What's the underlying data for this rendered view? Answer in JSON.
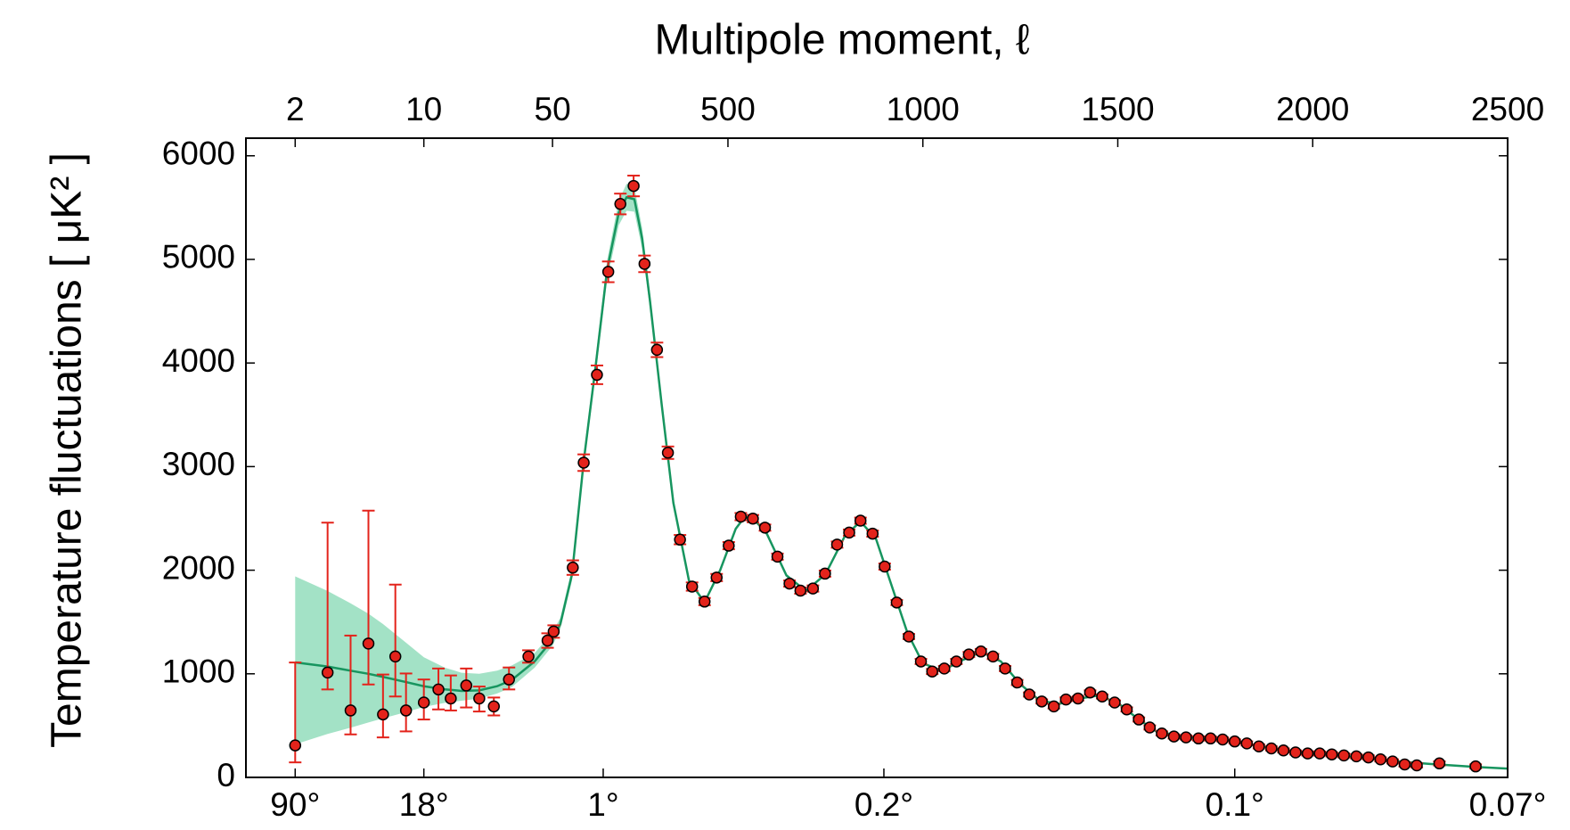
{
  "chart_data": {
    "type": "scatter",
    "x2label": "Multipole moment, ℓ",
    "ylabel": "Temperature fluctuations [ μK² ]",
    "xscale": "log-linear",
    "xsplit": 50,
    "xlim": [
      1.08,
      2500
    ],
    "ylim": [
      0,
      6170
    ],
    "yticks": [
      0,
      1000,
      2000,
      3000,
      4000,
      5000,
      6000
    ],
    "x2ticks": [
      2,
      10,
      50,
      500,
      1000,
      1500,
      2000,
      2500
    ],
    "xticks": [
      {
        "value": 2,
        "label": "90°"
      },
      {
        "value": 10,
        "label": "18°"
      },
      {
        "value": 180,
        "label": "1°"
      },
      {
        "value": 900,
        "label": "0.2°"
      },
      {
        "value": 1800,
        "label": "0.1°"
      },
      {
        "value": 2500,
        "label": "0.07°"
      }
    ],
    "points": {
      "color": "#e3231b",
      "x": [
        2,
        3,
        4,
        5,
        6,
        7,
        8,
        10,
        12,
        14,
        17,
        20,
        24,
        29,
        37,
        47,
        53,
        102,
        130,
        164,
        193,
        224,
        258,
        286,
        318,
        346,
        377,
        408,
        440,
        471,
        502,
        533,
        564,
        595,
        627,
        658,
        686,
        718,
        749,
        780,
        811,
        840,
        871,
        902,
        933,
        964,
        995,
        1024,
        1055,
        1086,
        1118,
        1149,
        1180,
        1211,
        1242,
        1273,
        1305,
        1336,
        1367,
        1398,
        1429,
        1460,
        1492,
        1523,
        1554,
        1582,
        1613,
        1644,
        1675,
        1707,
        1738,
        1769,
        1800,
        1831,
        1862,
        1894,
        1925,
        1956,
        1987,
        2018,
        2049,
        2080,
        2112,
        2143,
        2174,
        2205,
        2236,
        2267,
        2325,
        2418
      ],
      "values": [
        309,
        1012,
        646,
        1292,
        608,
        1167,
        646,
        723,
        849,
        762,
        887,
        762,
        685,
        945,
        1167,
        1321,
        1408,
        2025,
        3038,
        3886,
        4880,
        5535,
        5709,
        4957,
        4127,
        3134,
        2295,
        1842,
        1697,
        1929,
        2237,
        2517,
        2498,
        2411,
        2131,
        1871,
        1803,
        1823,
        1967,
        2247,
        2363,
        2478,
        2353,
        2035,
        1688,
        1360,
        1119,
        1022,
        1051,
        1119,
        1186,
        1215,
        1167,
        1051,
        916,
        800,
        733,
        685,
        752,
        762,
        820,
        781,
        723,
        656,
        559,
        482,
        424,
        395,
        386,
        376,
        376,
        366,
        347,
        328,
        299,
        280,
        260,
        241,
        231,
        231,
        222,
        212,
        203,
        193,
        174,
        154,
        125,
        116,
        135,
        106
      ],
      "err_minus": [
        164,
        163,
        231,
        395,
        222,
        386,
        202,
        164,
        193,
        116,
        212,
        126,
        87,
        96,
        60,
        70,
        60,
        70,
        80,
        90,
        100,
        100,
        100,
        80,
        70,
        60,
        45,
        40,
        35,
        35,
        35,
        35,
        35,
        30,
        30,
        30,
        30,
        30,
        30,
        30,
        30,
        30,
        30,
        30,
        25,
        25,
        25,
        25,
        25,
        25,
        25,
        25,
        25,
        25,
        25,
        20,
        20,
        20,
        20,
        20,
        20,
        20,
        20,
        20,
        20,
        20,
        20,
        20,
        20,
        20,
        20,
        20,
        20,
        20,
        20,
        20,
        20,
        20,
        20,
        20,
        20,
        20,
        20,
        20,
        20,
        20,
        20,
        20,
        20,
        20
      ],
      "err_plus": [
        800,
        1447,
        723,
        1283,
        385,
        694,
        357,
        222,
        202,
        222,
        164,
        115,
        86,
        116,
        60,
        70,
        60,
        70,
        80,
        90,
        100,
        100,
        100,
        80,
        70,
        60,
        45,
        40,
        35,
        35,
        35,
        35,
        35,
        30,
        30,
        30,
        30,
        30,
        30,
        30,
        30,
        30,
        30,
        30,
        25,
        25,
        25,
        25,
        25,
        25,
        25,
        25,
        25,
        25,
        25,
        20,
        20,
        20,
        20,
        20,
        20,
        20,
        20,
        20,
        20,
        20,
        20,
        20,
        20,
        20,
        20,
        20,
        20,
        20,
        20,
        20,
        20,
        20,
        20,
        20,
        20,
        20,
        20,
        20,
        20,
        20,
        20,
        20,
        20,
        20
      ]
    },
    "model": {
      "color": "#17955f",
      "x": [
        2,
        3,
        4,
        5,
        6,
        8,
        10,
        13,
        16,
        20,
        25,
        30,
        40,
        50,
        70,
        100,
        130,
        160,
        190,
        220,
        240,
        260,
        280,
        300,
        330,
        360,
        400,
        440,
        480,
        520,
        540,
        560,
        600,
        650,
        700,
        750,
        800,
        840,
        880,
        920,
        960,
        1000,
        1050,
        1100,
        1150,
        1200,
        1250,
        1300,
        1350,
        1400,
        1450,
        1500,
        1550,
        1600,
        1700,
        1800,
        1900,
        2000,
        2100,
        2200,
        2300,
        2400,
        2500
      ],
      "values": [
        1110,
        1070,
        1030,
        1000,
        970,
        920,
        880,
        850,
        835,
        840,
        880,
        940,
        1120,
        1330,
        1480,
        1960,
        3050,
        3950,
        4900,
        5450,
        5600,
        5580,
        5200,
        4600,
        3600,
        2650,
        1900,
        1690,
        2000,
        2400,
        2500,
        2520,
        2350,
        1950,
        1800,
        1960,
        2330,
        2470,
        2300,
        1850,
        1400,
        1100,
        1030,
        1130,
        1210,
        1120,
        900,
        740,
        710,
        760,
        790,
        720,
        570,
        440,
        380,
        345,
        280,
        230,
        200,
        160,
        130,
        105,
        85
      ]
    },
    "band": {
      "color": "#a3e2c6",
      "x": [
        2,
        3,
        4,
        5,
        6,
        8,
        10,
        13,
        16,
        20,
        25,
        30,
        40,
        50,
        70,
        100,
        130,
        160,
        190,
        220,
        240,
        260,
        280,
        300,
        330,
        360,
        400
      ],
      "lower": [
        320,
        420,
        480,
        530,
        570,
        630,
        680,
        720,
        740,
        760,
        810,
        870,
        1060,
        1270,
        1430,
        1900,
        2980,
        3870,
        4800,
        5330,
        5470,
        5460,
        5100,
        4520,
        3550,
        2610,
        1880
      ],
      "upper": [
        1940,
        1800,
        1680,
        1580,
        1480,
        1300,
        1160,
        1060,
        1010,
        1000,
        1030,
        1080,
        1200,
        1400,
        1540,
        2020,
        3120,
        4030,
        4990,
        5570,
        5730,
        5700,
        5300,
        4680,
        3650,
        2690,
        1920
      ]
    }
  }
}
